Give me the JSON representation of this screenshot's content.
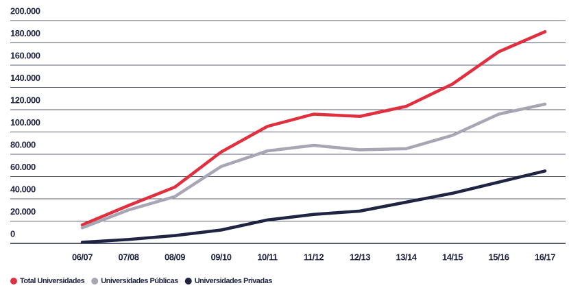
{
  "chart_data": {
    "type": "line",
    "categories": [
      "06/07",
      "07/08",
      "08/09",
      "09/10",
      "10/11",
      "11/12",
      "12/13",
      "13/14",
      "14/15",
      "15/16",
      "16/17"
    ],
    "series": [
      {
        "name": "Total Universidades",
        "color": "#e0303f",
        "values": [
          16600,
          34000,
          50500,
          82000,
          105000,
          116000,
          114000,
          123000,
          143000,
          172000,
          190000
        ]
      },
      {
        "name": "Universidades Públicas",
        "color": "#a8a6b5",
        "values": [
          14000,
          30000,
          42000,
          69000,
          83000,
          88000,
          84000,
          85000,
          97000,
          116000,
          125000
        ]
      },
      {
        "name": "Universidades Privadas",
        "color": "#1f2442",
        "values": [
          1000,
          3500,
          7000,
          12000,
          21000,
          26000,
          29000,
          37000,
          45000,
          55000,
          65000
        ]
      }
    ],
    "ylim": [
      0,
      200000
    ],
    "yticks": [
      0,
      {
        "value": 20000,
        "label": "20.000"
      },
      {
        "value": 40000,
        "label": "40.000"
      },
      {
        "value": 60000,
        "label": "60.000"
      },
      {
        "value": 80000,
        "label": "80.000"
      },
      {
        "value": 100000,
        "label": "100.000"
      },
      {
        "value": 120000,
        "label": "120.000"
      },
      {
        "value": 140000,
        "label": "140.000"
      },
      {
        "value": 160000,
        "label": "160.000"
      },
      {
        "value": 180000,
        "label": "180.000"
      },
      {
        "value": 200000,
        "label": "200.000"
      }
    ],
    "grid": true,
    "legend": "bottom-left"
  }
}
